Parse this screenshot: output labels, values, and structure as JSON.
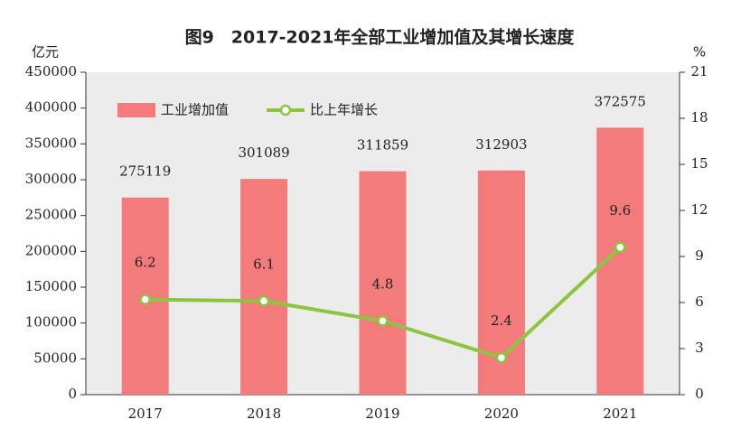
{
  "chart_data": {
    "type": "bar",
    "title": "图9　2017-2021年全部工业增加值及其增长速度",
    "y_label": "亿元",
    "y2_label": "%",
    "categories": [
      "2017",
      "2018",
      "2019",
      "2020",
      "2021"
    ],
    "series": [
      {
        "name": "工业增加值",
        "type": "bar",
        "color": "#f47b7b",
        "values": [
          275119,
          301089,
          311859,
          312903,
          372575
        ]
      },
      {
        "name": "比上年增长",
        "type": "line",
        "axis": "y2",
        "color": "#8cc640",
        "values": [
          6.2,
          6.1,
          4.8,
          2.4,
          9.6
        ]
      }
    ],
    "ylim": [
      0,
      450000
    ],
    "yticks": [
      0,
      50000,
      100000,
      150000,
      200000,
      250000,
      300000,
      350000,
      400000,
      450000
    ],
    "y2lim": [
      0,
      21
    ],
    "y2ticks": [
      0,
      3,
      6,
      9,
      12,
      15,
      18,
      21
    ],
    "legend": "upper left",
    "grid": false
  }
}
